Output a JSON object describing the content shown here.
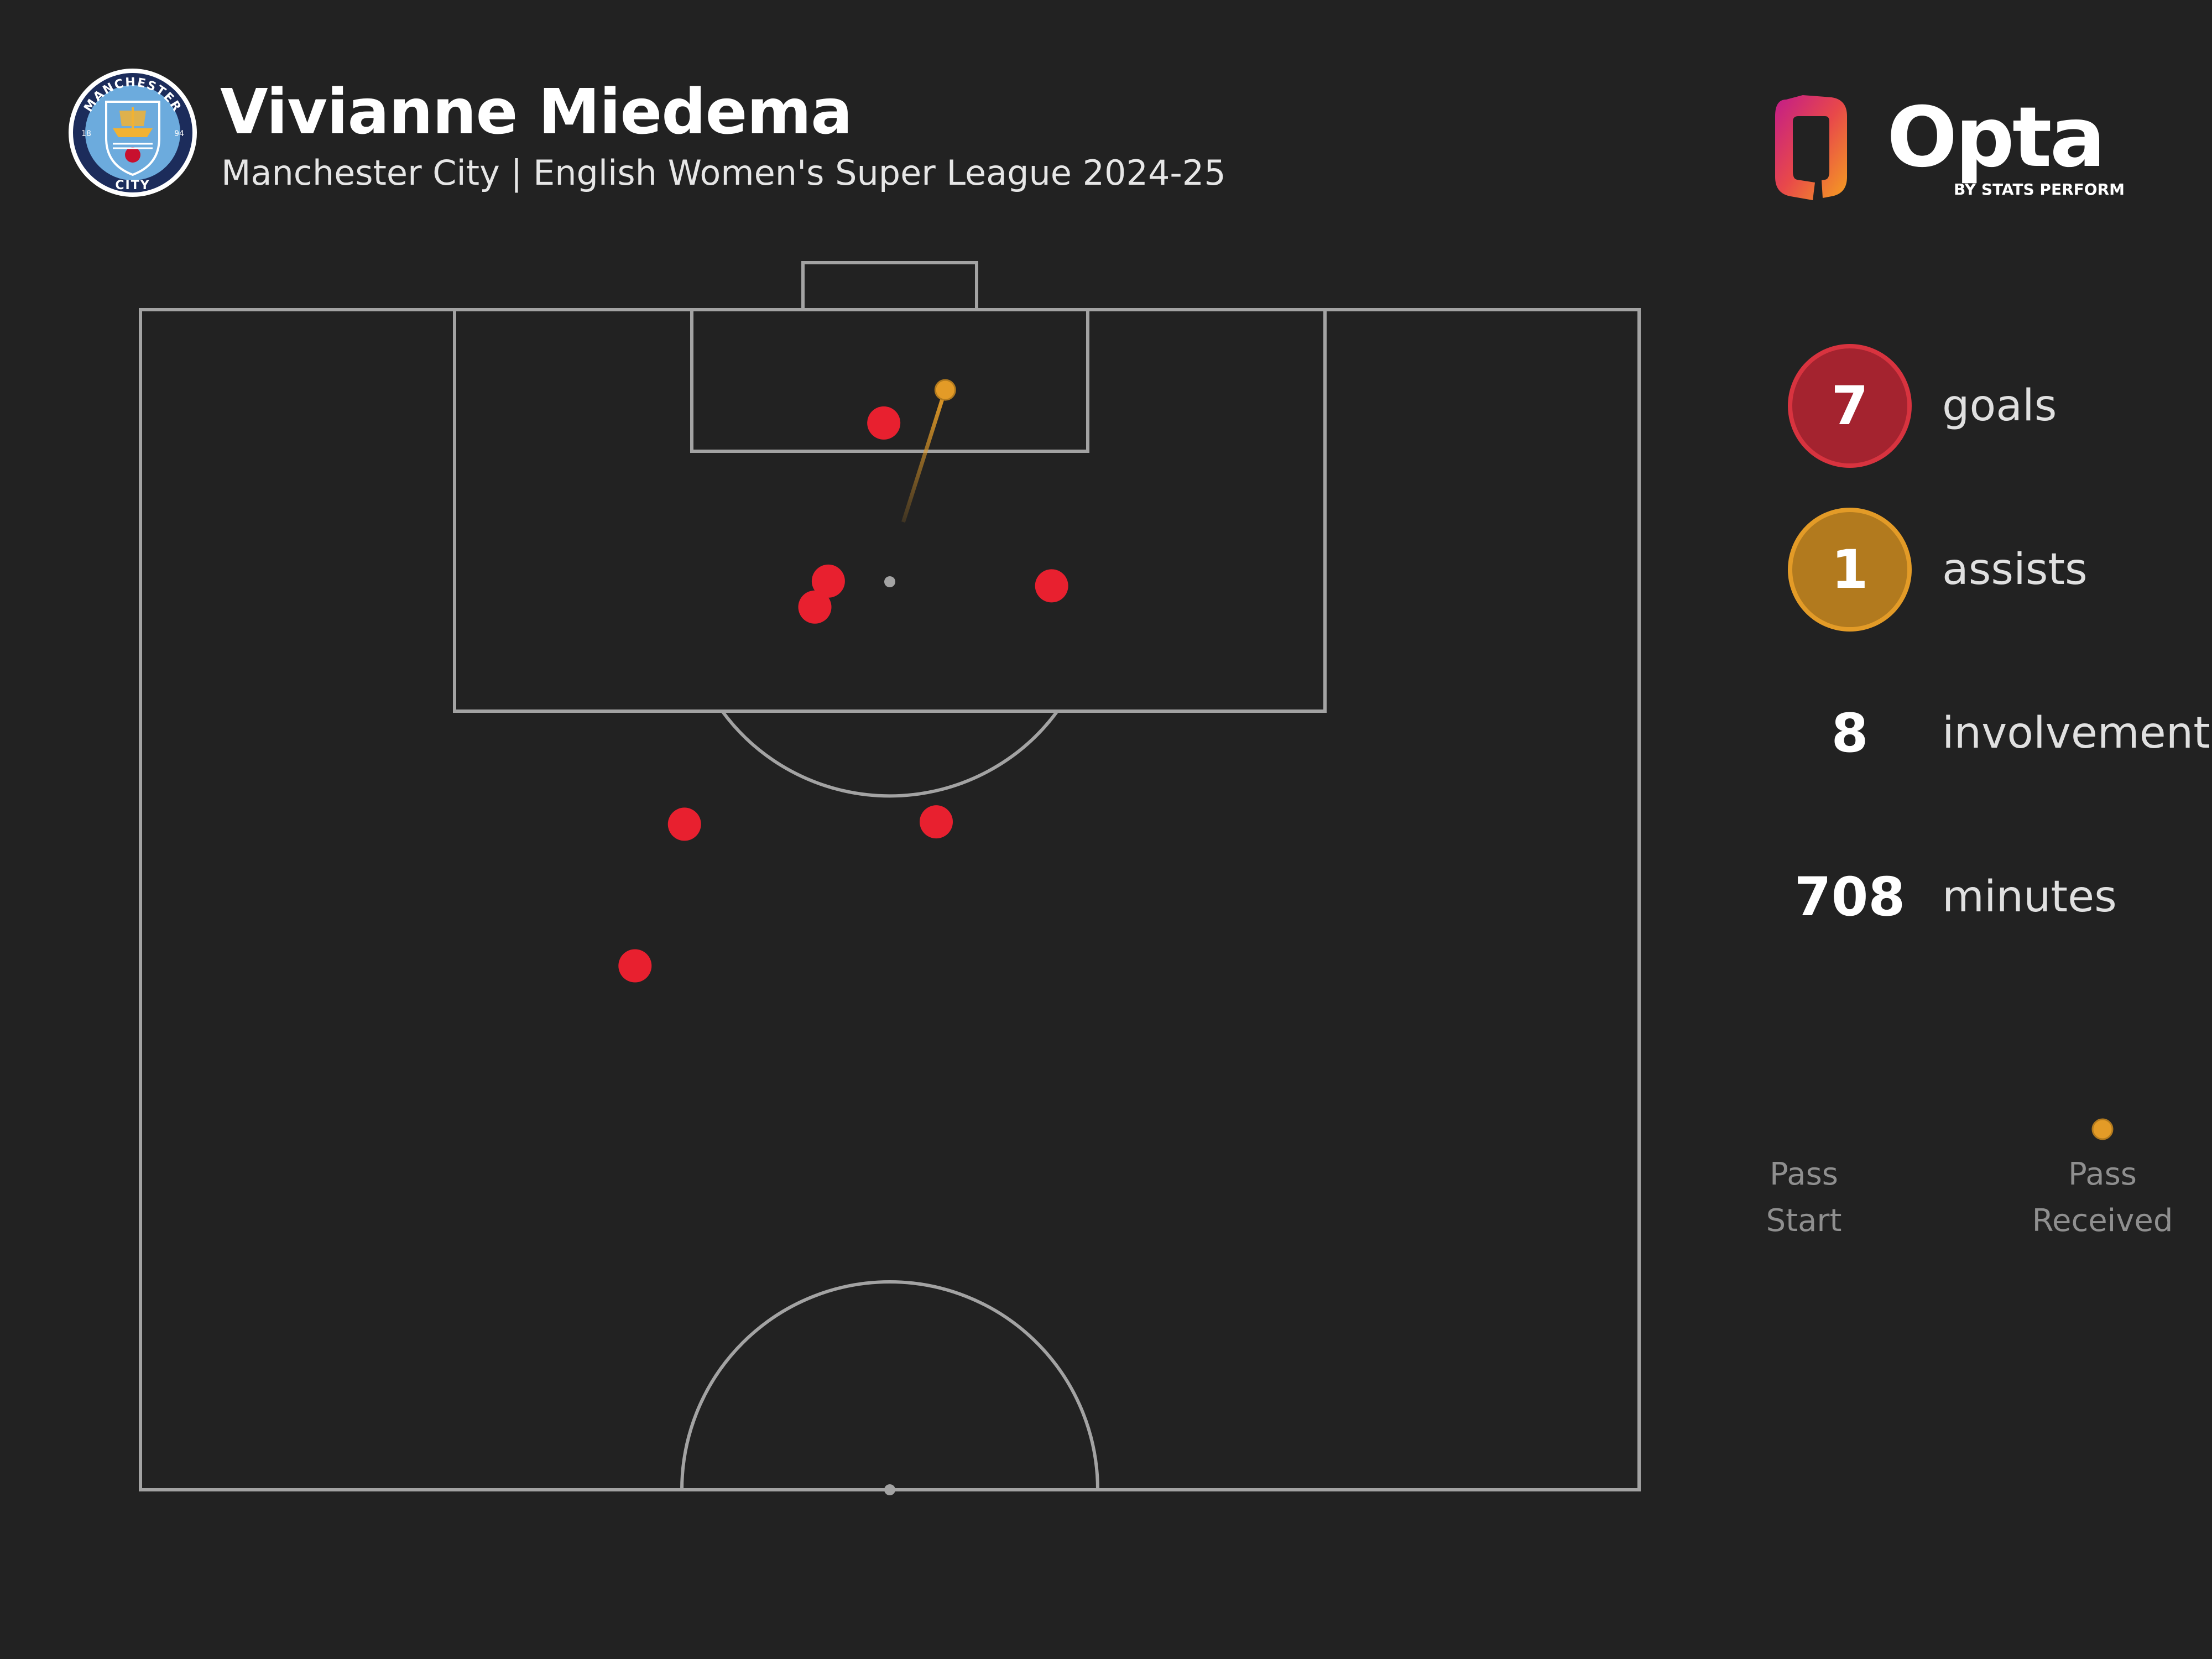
{
  "header": {
    "title": "Vivianne Miedema",
    "subtitle": "Manchester City | English Women's Super League 2024-25"
  },
  "crest": {
    "top_text": "MANCHESTER",
    "bottom_text": "CITY",
    "year_left": "18",
    "year_right": "94",
    "colors": {
      "ring": "#ffffff",
      "blue": "#6cabdd",
      "navy": "#1c2c5b",
      "gold": "#f2b233",
      "red": "#c8102e"
    }
  },
  "brand": {
    "name": "Opta",
    "tagline": "BY STATS PERFORM",
    "colors": {
      "gradient_start": "#c21c8a",
      "gradient_mid": "#e8484a",
      "gradient_end": "#f5a020",
      "text": "#ffffff"
    }
  },
  "stats": [
    {
      "value": "7",
      "label": "goals",
      "style": "goals",
      "color": "#a4232f"
    },
    {
      "value": "1",
      "label": "assists",
      "style": "assists",
      "color": "#b27a1e"
    },
    {
      "value": "8",
      "label": "involvements",
      "style": "plain"
    },
    {
      "value": "708",
      "label": "minutes",
      "style": "plain"
    }
  ],
  "legend": {
    "start_label_1": "Pass",
    "start_label_2": "Start",
    "end_label_1": "Pass",
    "end_label_2": "Received",
    "color": "#e39b27"
  },
  "chart_data": {
    "type": "scatter",
    "pitch": "attacking half, vertical orientation",
    "coordinate_system": "x: 0-100 pitch width (left to right), y: 50-100 pitch length (halfway line = 50, goal line = 100)",
    "goals": [
      {
        "x": 49.6,
        "y": 95.2
      },
      {
        "x": 45.9,
        "y": 88.5
      },
      {
        "x": 45.0,
        "y": 87.4
      },
      {
        "x": 60.8,
        "y": 88.3
      },
      {
        "x": 36.3,
        "y": 78.2
      },
      {
        "x": 53.1,
        "y": 78.3
      },
      {
        "x": 33.0,
        "y": 72.2
      }
    ],
    "assists": [
      {
        "start_x": 50.9,
        "start_y": 91.0,
        "end_x": 53.7,
        "end_y": 96.6
      }
    ],
    "colors": {
      "goal": "#e8202f",
      "assist": "#e39b27",
      "pitch_line": "#a3a3a3",
      "background": "#222222"
    }
  }
}
